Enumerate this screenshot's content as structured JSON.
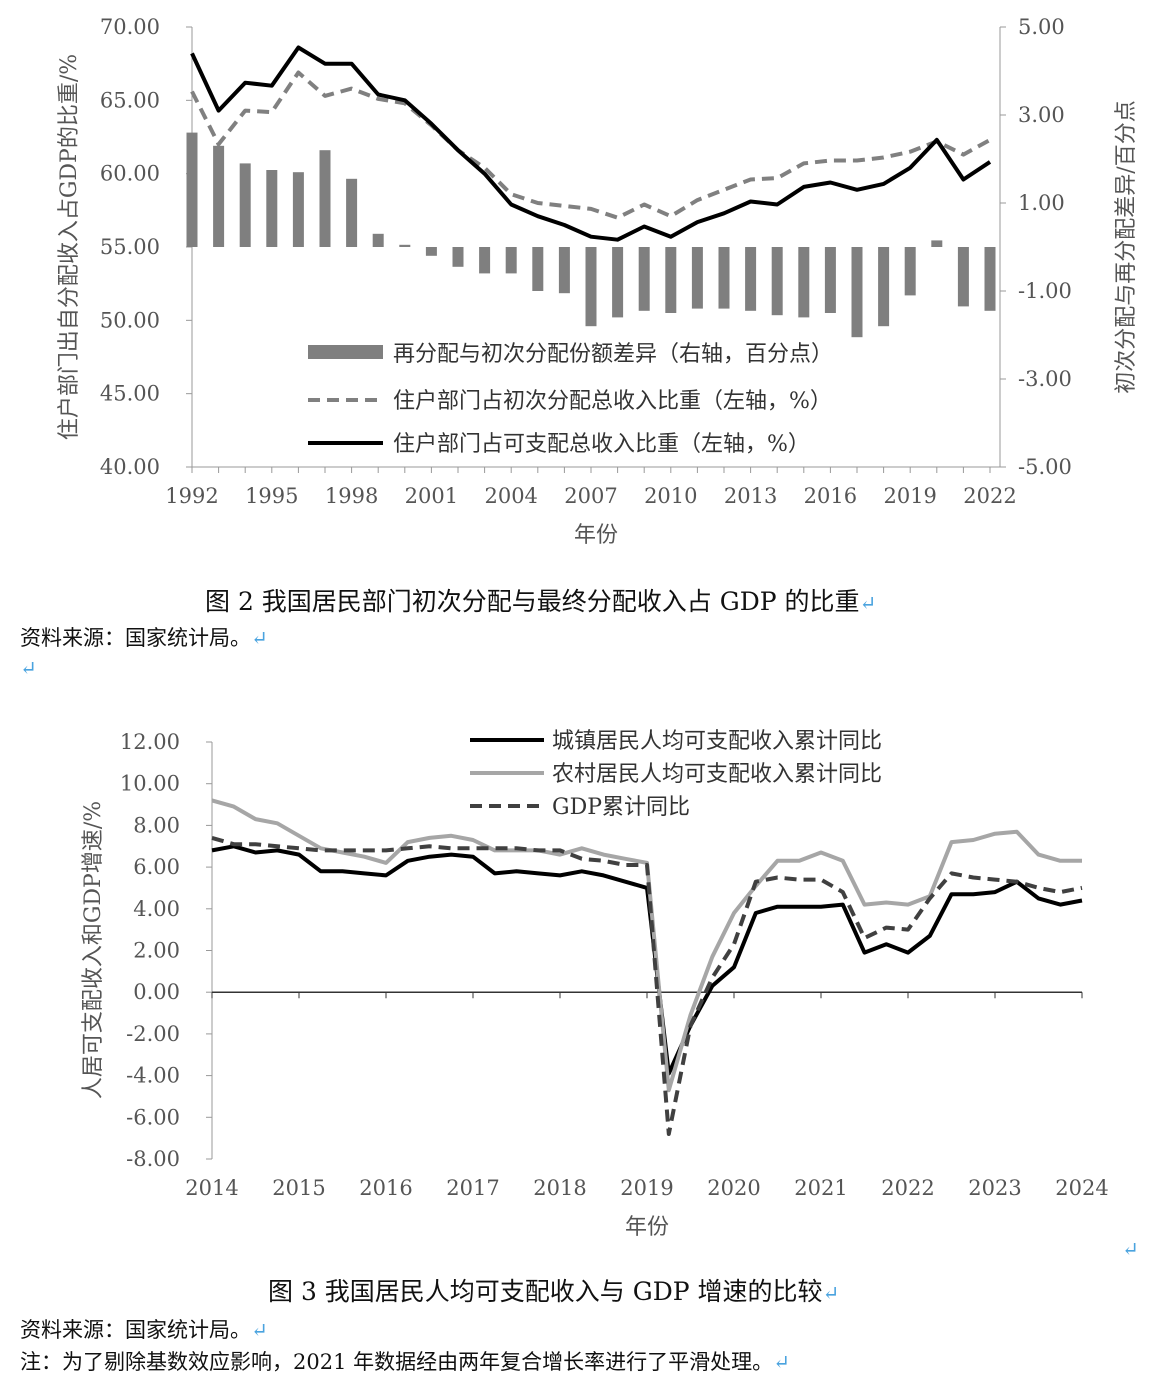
{
  "figures": [
    {
      "caption": "图 2  我国居民部门初次分配与最终分配收入占 GDP 的比重",
      "source": "资料来源：国家统计局。",
      "chart_data": {
        "type": "bar+line",
        "xlabel": "年份",
        "x_ticks": [
          "1992",
          "1995",
          "1998",
          "2001",
          "2004",
          "2007",
          "2010",
          "2013",
          "2016",
          "2019",
          "2022"
        ],
        "y_left_label": "住户部门出自分配收入占GDP的比重/%",
        "y_left_ticks": [
          "70.00",
          "65.00",
          "60.00",
          "55.00",
          "50.00",
          "45.00",
          "40.00"
        ],
        "y_left_range": [
          40,
          70
        ],
        "y_right_label": "初次分配与再分配差异/百分点",
        "y_right_ticks": [
          "5.00",
          "3.00",
          "1.00",
          "-1.00",
          "-3.00",
          "-5.00"
        ],
        "y_right_range": [
          -5,
          5
        ],
        "years": [
          1992,
          1993,
          1994,
          1995,
          1996,
          1997,
          1998,
          1999,
          2000,
          2001,
          2002,
          2003,
          2004,
          2005,
          2006,
          2007,
          2008,
          2009,
          2010,
          2011,
          2012,
          2013,
          2014,
          2015,
          2016,
          2017,
          2018,
          2019,
          2020,
          2021,
          2022
        ],
        "series": [
          {
            "name": "再分配与初次分配份额差异（右轴，百分点）",
            "kind": "bar",
            "axis": "right",
            "color": "#7f7f7f",
            "values": [
              2.6,
              2.3,
              1.9,
              1.75,
              1.7,
              2.2,
              1.55,
              0.3,
              0.05,
              -0.2,
              -0.45,
              -0.6,
              -0.6,
              -1.0,
              -1.05,
              -1.8,
              -1.6,
              -1.45,
              -1.5,
              -1.4,
              -1.4,
              -1.45,
              -1.55,
              -1.6,
              -1.5,
              -2.05,
              -1.8,
              -1.1,
              0.15,
              -1.35,
              -1.45
            ]
          },
          {
            "name": "住户部门占初次分配总收入比重（左轴，%）",
            "kind": "line",
            "axis": "left",
            "dash": true,
            "color": "#808080",
            "values": [
              65.6,
              62.0,
              64.3,
              64.2,
              66.9,
              65.3,
              65.8,
              65.1,
              64.8,
              63.3,
              61.6,
              60.4,
              58.6,
              58.0,
              57.8,
              57.6,
              57.0,
              57.9,
              57.1,
              58.2,
              58.9,
              59.6,
              59.7,
              60.7,
              60.9,
              60.9,
              61.1,
              61.5,
              62.2,
              61.3,
              62.3
            ]
          },
          {
            "name": "住户部门占可支配总收入比重（左轴，%）",
            "kind": "line",
            "axis": "left",
            "dash": false,
            "color": "#000000",
            "values": [
              68.2,
              64.3,
              66.2,
              66.0,
              68.6,
              67.5,
              67.5,
              65.4,
              65.0,
              63.4,
              61.6,
              60.0,
              57.9,
              57.1,
              56.5,
              55.7,
              55.5,
              56.4,
              55.7,
              56.7,
              57.3,
              58.1,
              57.9,
              59.1,
              59.4,
              58.9,
              59.3,
              60.4,
              62.3,
              59.6,
              60.8
            ]
          }
        ]
      }
    },
    {
      "caption": "图 3  我国居民人均可支配收入与 GDP 增速的比较",
      "source": "资料来源：国家统计局。",
      "note": "注：为了剔除基数效应影响，2021 年数据经由两年复合增长率进行了平滑处理。",
      "chart_data": {
        "type": "line",
        "xlabel": "年份",
        "ylabel": "人居可支配收入和GDP增速/%",
        "x_ticks": [
          "2014",
          "2015",
          "2016",
          "2017",
          "2018",
          "2019",
          "2020",
          "2021",
          "2022",
          "2023",
          "2024"
        ],
        "y_ticks": [
          "12.00",
          "10.00",
          "8.00",
          "6.00",
          "4.00",
          "2.00",
          "0.00",
          "-2.00",
          "-4.00",
          "-6.00",
          "-8.00"
        ],
        "y_range": [
          -8,
          12
        ],
        "x_range": [
          2014,
          2024
        ],
        "series": [
          {
            "name": "城镇居民人均可支配收入累计同比",
            "color": "#000000",
            "dash": false,
            "x": [
              2014.0,
              2014.25,
              2014.5,
              2014.75,
              2015.0,
              2015.25,
              2015.5,
              2015.75,
              2016.0,
              2016.25,
              2016.5,
              2016.75,
              2017.0,
              2017.25,
              2017.5,
              2017.75,
              2018.0,
              2018.25,
              2018.5,
              2018.75,
              2019.0,
              2019.25,
              2019.5,
              2019.75,
              2020.0,
              2020.25,
              2020.5,
              2020.75,
              2021.0,
              2021.25,
              2021.5,
              2021.75,
              2022.0,
              2022.25,
              2022.5,
              2022.75,
              2023.0,
              2023.25,
              2023.5,
              2023.75,
              2024.0
            ],
            "values": [
              6.8,
              7.0,
              6.7,
              6.8,
              6.6,
              5.8,
              5.8,
              5.7,
              5.6,
              6.3,
              6.5,
              6.6,
              6.5,
              5.7,
              5.8,
              5.7,
              5.6,
              5.8,
              5.6,
              5.3,
              5.0,
              -3.9,
              -1.6,
              0.3,
              1.2,
              3.8,
              4.1,
              4.1,
              4.1,
              4.2,
              1.9,
              2.3,
              1.9,
              2.7,
              4.7,
              4.7,
              4.8,
              5.3,
              4.5,
              4.2,
              4.4
            ]
          },
          {
            "name": "农村居民人均可支配收入累计同比",
            "color": "#a6a6a6",
            "dash": false,
            "x": [
              2014.0,
              2014.25,
              2014.5,
              2014.75,
              2015.0,
              2015.25,
              2015.5,
              2015.75,
              2016.0,
              2016.25,
              2016.5,
              2016.75,
              2017.0,
              2017.25,
              2017.5,
              2017.75,
              2018.0,
              2018.25,
              2018.5,
              2018.75,
              2019.0,
              2019.25,
              2019.5,
              2019.75,
              2020.0,
              2020.25,
              2020.5,
              2020.75,
              2021.0,
              2021.25,
              2021.5,
              2021.75,
              2022.0,
              2022.25,
              2022.5,
              2022.75,
              2023.0,
              2023.25,
              2023.5,
              2023.75,
              2024.0
            ],
            "values": [
              9.2,
              8.9,
              8.3,
              8.1,
              7.5,
              6.9,
              6.7,
              6.5,
              6.2,
              7.2,
              7.4,
              7.5,
              7.3,
              6.8,
              6.8,
              6.8,
              6.6,
              6.9,
              6.6,
              6.4,
              6.2,
              -4.7,
              -1.1,
              1.7,
              3.8,
              5.1,
              6.3,
              6.3,
              6.7,
              6.3,
              4.2,
              4.3,
              4.2,
              4.6,
              7.2,
              7.3,
              7.6,
              7.7,
              6.6,
              6.3,
              6.3
            ]
          },
          {
            "name": "GDP累计同比",
            "color": "#404040",
            "dash": true,
            "x": [
              2014.0,
              2014.25,
              2014.5,
              2014.75,
              2015.0,
              2015.25,
              2015.5,
              2015.75,
              2016.0,
              2016.25,
              2016.5,
              2016.75,
              2017.0,
              2017.25,
              2017.5,
              2017.75,
              2018.0,
              2018.25,
              2018.5,
              2018.75,
              2019.0,
              2019.25,
              2019.5,
              2019.75,
              2020.0,
              2020.25,
              2020.5,
              2020.75,
              2021.0,
              2021.25,
              2021.5,
              2021.75,
              2022.0,
              2022.25,
              2022.5,
              2022.75,
              2023.0,
              2023.25,
              2023.5,
              2023.75,
              2024.0
            ],
            "values": [
              7.4,
              7.1,
              7.1,
              7.0,
              6.9,
              6.8,
              6.8,
              6.8,
              6.8,
              6.9,
              7.0,
              6.9,
              6.9,
              6.9,
              6.9,
              6.8,
              6.8,
              6.4,
              6.3,
              6.1,
              6.1,
              -6.8,
              -1.6,
              0.7,
              2.3,
              5.3,
              5.5,
              5.4,
              5.4,
              4.8,
              2.6,
              3.1,
              3.0,
              4.5,
              5.7,
              5.5,
              5.4,
              5.3,
              5.0,
              4.8,
              5.0
            ]
          }
        ]
      }
    }
  ]
}
